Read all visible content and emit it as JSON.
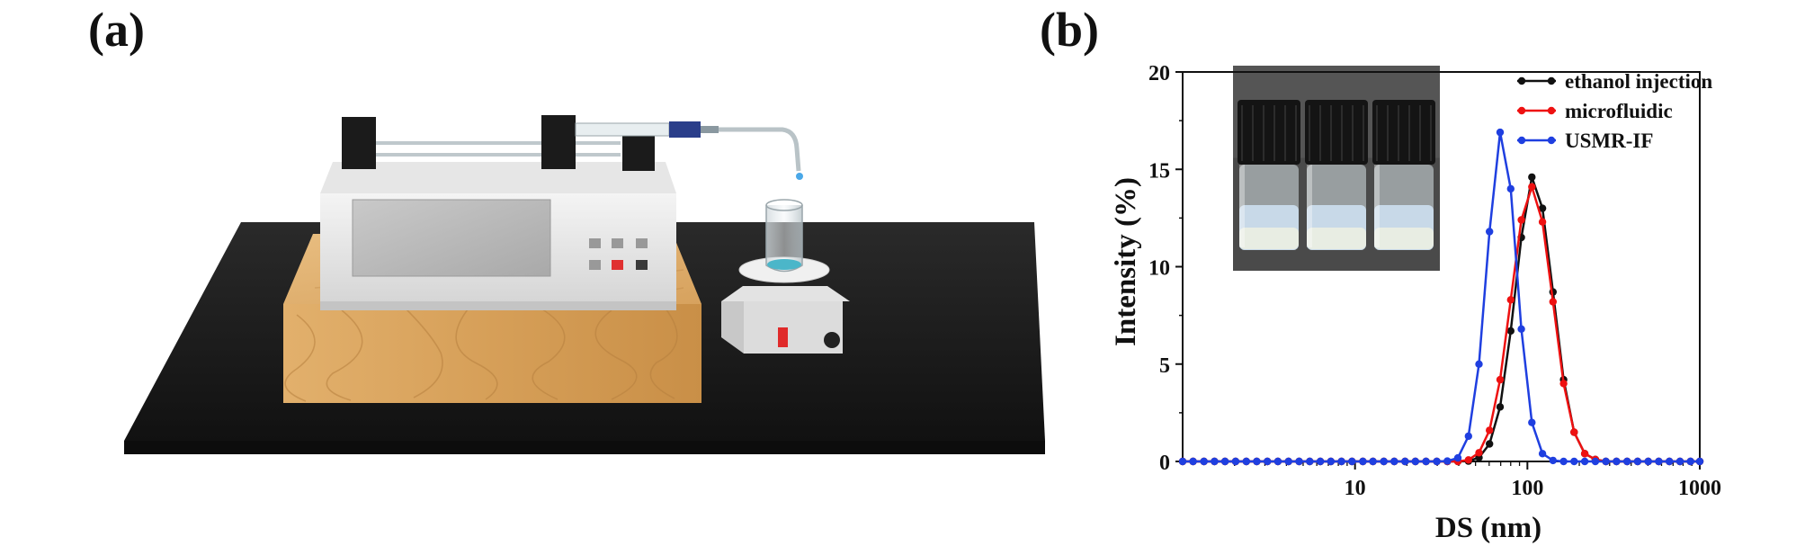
{
  "panels": {
    "a": "(a)",
    "b": "(b)"
  },
  "illustration": {
    "subject": "syringe-pump-setup"
  },
  "colors": {
    "ethanol": "#111111",
    "microfluidic": "#ee1111",
    "usmr": "#1f3fe0",
    "table": "#1e1e1e",
    "wood": "#d9a45f"
  },
  "chart_data": {
    "type": "line",
    "xscale": "log",
    "xlabel": "DS (nm)",
    "ylabel": "Intensity (%)",
    "xlim": [
      1,
      1000
    ],
    "ylim": [
      0,
      20
    ],
    "xticks": [
      "10",
      "100",
      "1000"
    ],
    "yticks": [
      "0",
      "5",
      "10",
      "15",
      "20"
    ],
    "legend": "top-right",
    "inset": "photo-of-three-vials",
    "series": [
      {
        "name": "ethanol injection",
        "color": "#111111",
        "x": [
          1.0,
          1.15,
          1.33,
          1.53,
          1.76,
          2.03,
          2.34,
          2.69,
          3.1,
          3.57,
          4.11,
          4.74,
          5.46,
          6.29,
          7.24,
          8.34,
          9.6,
          11.1,
          12.7,
          14.7,
          16.9,
          19.5,
          22.4,
          25.8,
          29.8,
          34.3,
          39.5,
          45.5,
          52.4,
          60.3,
          69.5,
          80.0,
          92.2,
          106.2,
          122.3,
          140.8,
          162.2,
          186.8,
          215.2,
          247.8,
          285.4,
          328.7,
          378.6,
          436.1,
          502.2,
          578.4,
          666.2,
          767.3,
          883.8,
          1000.0
        ],
        "y": [
          0,
          0,
          0,
          0,
          0,
          0,
          0,
          0,
          0,
          0,
          0,
          0,
          0,
          0,
          0,
          0,
          0,
          0,
          0,
          0,
          0,
          0,
          0,
          0,
          0,
          0,
          0,
          0.02,
          0.2,
          0.9,
          2.8,
          6.7,
          11.5,
          14.6,
          13.0,
          8.7,
          4.2,
          1.5,
          0.4,
          0.1,
          0,
          0,
          0,
          0,
          0,
          0,
          0,
          0,
          0,
          0
        ]
      },
      {
        "name": "microfluidic",
        "color": "#ee1111",
        "x": [
          1.0,
          1.15,
          1.33,
          1.53,
          1.76,
          2.03,
          2.34,
          2.69,
          3.1,
          3.57,
          4.11,
          4.74,
          5.46,
          6.29,
          7.24,
          8.34,
          9.6,
          11.1,
          12.7,
          14.7,
          16.9,
          19.5,
          22.4,
          25.8,
          29.8,
          34.3,
          39.5,
          45.5,
          52.4,
          60.3,
          69.5,
          80.0,
          92.2,
          106.2,
          122.3,
          140.8,
          162.2,
          186.8,
          215.2,
          247.8,
          285.4,
          328.7,
          378.6,
          436.1,
          502.2,
          578.4,
          666.2,
          767.3,
          883.8,
          1000.0
        ],
        "y": [
          0,
          0,
          0,
          0,
          0,
          0,
          0,
          0,
          0,
          0,
          0,
          0,
          0,
          0,
          0,
          0,
          0,
          0,
          0,
          0,
          0,
          0,
          0,
          0,
          0,
          0,
          0,
          0.08,
          0.45,
          1.6,
          4.2,
          8.3,
          12.4,
          14.1,
          12.3,
          8.2,
          4.0,
          1.5,
          0.4,
          0.1,
          0,
          0,
          0,
          0,
          0,
          0,
          0,
          0,
          0,
          0
        ]
      },
      {
        "name": "USMR-IF",
        "color": "#1f3fe0",
        "x": [
          1.0,
          1.15,
          1.33,
          1.53,
          1.76,
          2.03,
          2.34,
          2.69,
          3.1,
          3.57,
          4.11,
          4.74,
          5.46,
          6.29,
          7.24,
          8.34,
          9.6,
          11.1,
          12.7,
          14.7,
          16.9,
          19.5,
          22.4,
          25.8,
          29.8,
          34.3,
          39.5,
          45.5,
          52.4,
          60.3,
          69.5,
          80.0,
          92.2,
          106.2,
          122.3,
          140.8,
          162.2,
          186.8,
          215.2,
          247.8,
          285.4,
          328.7,
          378.6,
          436.1,
          502.2,
          578.4,
          666.2,
          767.3,
          883.8,
          1000.0
        ],
        "y": [
          0,
          0,
          0,
          0,
          0,
          0,
          0,
          0,
          0,
          0,
          0,
          0,
          0,
          0,
          0,
          0,
          0,
          0,
          0,
          0,
          0,
          0,
          0,
          0,
          0,
          0.02,
          0.18,
          1.3,
          5.0,
          11.8,
          16.9,
          14.0,
          6.8,
          2.0,
          0.4,
          0.05,
          0,
          0,
          0,
          0,
          0,
          0,
          0,
          0,
          0,
          0,
          0,
          0,
          0,
          0
        ]
      }
    ]
  }
}
